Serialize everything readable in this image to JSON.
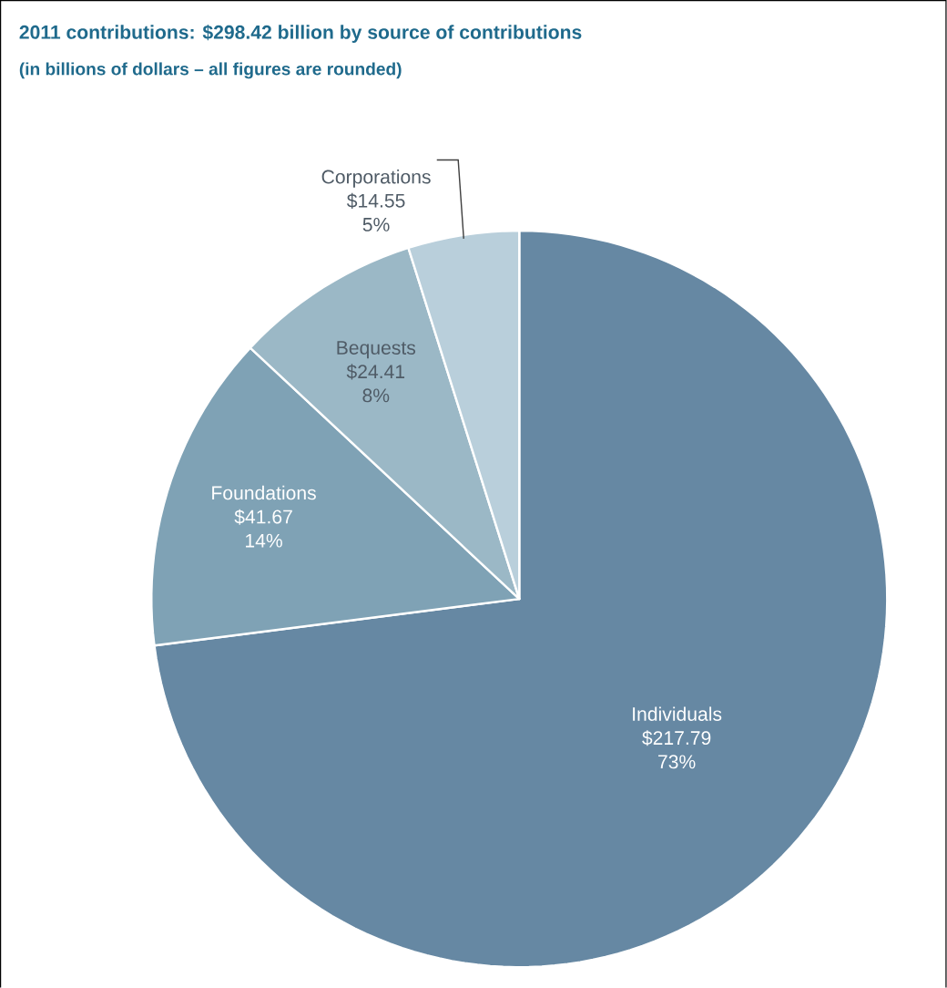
{
  "chart_data": {
    "type": "pie",
    "title": "2011 contributions: $298.42 billion by source of contributions",
    "subtitle": "(in billions of dollars – all figures are rounded)",
    "categories": [
      "Individuals",
      "Foundations",
      "Bequests",
      "Corporations"
    ],
    "values": [
      217.79,
      41.67,
      24.41,
      14.55
    ],
    "value_labels": [
      "$217.79",
      "$41.67",
      "$24.41",
      "$14.55"
    ],
    "colors": [
      "#6688a3",
      "#7fa2b5",
      "#9bb8c6",
      "#b9cfdb"
    ],
    "annotations": [
      {
        "text": "73%",
        "x": "Individuals"
      },
      {
        "text": "14%",
        "x": "Foundations"
      },
      {
        "text": "8%",
        "x": "Bequests"
      },
      {
        "text": "5%",
        "x": "Corporations"
      }
    ]
  }
}
